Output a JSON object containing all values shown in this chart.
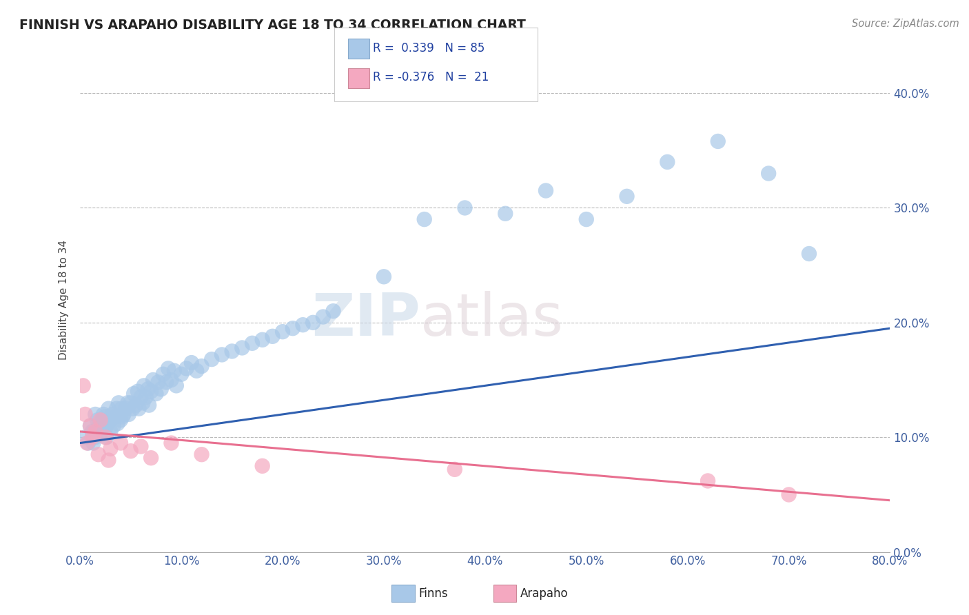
{
  "title": "FINNISH VS ARAPAHO DISABILITY AGE 18 TO 34 CORRELATION CHART",
  "source": "Source: ZipAtlas.com",
  "xlim": [
    0.0,
    0.8
  ],
  "ylim": [
    0.0,
    0.44
  ],
  "ylabel": "Disability Age 18 to 34",
  "watermark_zip": "ZIP",
  "watermark_atlas": "atlas",
  "finns_color": "#a8c8e8",
  "arapaho_color": "#f4a8c0",
  "finns_line_color": "#3060b0",
  "arapaho_line_color": "#e87090",
  "finns_R": 0.339,
  "finns_N": 85,
  "arapaho_R": -0.376,
  "arapaho_N": 21,
  "finn_line_x0": 0.0,
  "finn_line_y0": 0.095,
  "finn_line_x1": 0.8,
  "finn_line_y1": 0.195,
  "arap_line_x0": 0.0,
  "arap_line_y0": 0.105,
  "arap_line_x1": 0.8,
  "arap_line_y1": 0.045,
  "finns_x": [
    0.005,
    0.008,
    0.01,
    0.012,
    0.013,
    0.015,
    0.015,
    0.017,
    0.018,
    0.02,
    0.021,
    0.022,
    0.023,
    0.025,
    0.025,
    0.026,
    0.027,
    0.028,
    0.03,
    0.03,
    0.032,
    0.033,
    0.035,
    0.036,
    0.037,
    0.038,
    0.04,
    0.041,
    0.042,
    0.043,
    0.045,
    0.047,
    0.048,
    0.05,
    0.052,
    0.053,
    0.055,
    0.057,
    0.058,
    0.06,
    0.062,
    0.063,
    0.065,
    0.067,
    0.068,
    0.07,
    0.072,
    0.075,
    0.077,
    0.08,
    0.082,
    0.085,
    0.087,
    0.09,
    0.093,
    0.095,
    0.1,
    0.105,
    0.11,
    0.115,
    0.12,
    0.13,
    0.14,
    0.15,
    0.16,
    0.17,
    0.18,
    0.19,
    0.2,
    0.21,
    0.22,
    0.23,
    0.24,
    0.25,
    0.3,
    0.34,
    0.38,
    0.42,
    0.46,
    0.5,
    0.54,
    0.58,
    0.63,
    0.68,
    0.72
  ],
  "finns_y": [
    0.1,
    0.095,
    0.11,
    0.105,
    0.095,
    0.12,
    0.1,
    0.115,
    0.108,
    0.11,
    0.105,
    0.115,
    0.12,
    0.108,
    0.118,
    0.1,
    0.112,
    0.125,
    0.115,
    0.105,
    0.12,
    0.11,
    0.118,
    0.125,
    0.112,
    0.13,
    0.115,
    0.125,
    0.118,
    0.12,
    0.125,
    0.13,
    0.12,
    0.13,
    0.125,
    0.138,
    0.128,
    0.14,
    0.125,
    0.135,
    0.13,
    0.145,
    0.135,
    0.142,
    0.128,
    0.14,
    0.15,
    0.138,
    0.148,
    0.142,
    0.155,
    0.148,
    0.16,
    0.15,
    0.158,
    0.145,
    0.155,
    0.16,
    0.165,
    0.158,
    0.162,
    0.168,
    0.172,
    0.175,
    0.178,
    0.182,
    0.185,
    0.188,
    0.192,
    0.195,
    0.198,
    0.2,
    0.205,
    0.21,
    0.24,
    0.29,
    0.3,
    0.295,
    0.315,
    0.29,
    0.31,
    0.34,
    0.358,
    0.33,
    0.26
  ],
  "arapaho_x": [
    0.003,
    0.005,
    0.007,
    0.01,
    0.012,
    0.015,
    0.018,
    0.02,
    0.025,
    0.028,
    0.03,
    0.04,
    0.05,
    0.06,
    0.07,
    0.09,
    0.12,
    0.18,
    0.37,
    0.62,
    0.7
  ],
  "arapaho_y": [
    0.145,
    0.12,
    0.095,
    0.11,
    0.1,
    0.105,
    0.085,
    0.115,
    0.1,
    0.08,
    0.09,
    0.095,
    0.088,
    0.092,
    0.082,
    0.095,
    0.085,
    0.075,
    0.072,
    0.062,
    0.05
  ]
}
